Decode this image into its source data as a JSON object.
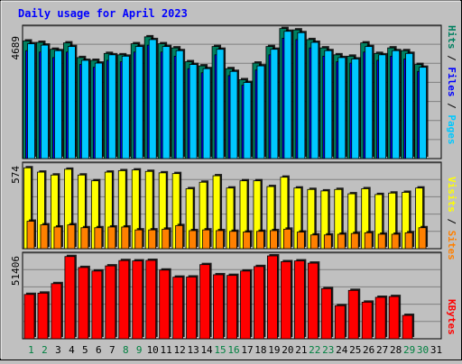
{
  "colors": {
    "background": "#c0c0c0",
    "panel": "#c0c0c0",
    "grid": "#808080",
    "title": "#0000ff",
    "pages": "#00c8ff",
    "files": "#0000ff",
    "hits": "#008060",
    "visits": "#ffff00",
    "sites": "#ff8000",
    "kbytes": "#ff0000",
    "weekend_day": "#008040",
    "weekday": "#000000"
  },
  "chart_data": [
    {
      "type": "bar",
      "title": "Daily usage for April 2023",
      "panel": "hits-files-pages",
      "categories": [
        "1",
        "2",
        "3",
        "4",
        "5",
        "6",
        "7",
        "8",
        "9",
        "10",
        "11",
        "12",
        "13",
        "14",
        "15",
        "16",
        "17",
        "18",
        "19",
        "20",
        "21",
        "22",
        "23",
        "24",
        "25",
        "26",
        "27",
        "28",
        "29",
        "30",
        "31"
      ],
      "weekend_days": [
        "1",
        "2",
        "8",
        "9",
        "15",
        "16",
        "22",
        "23",
        "29",
        "30"
      ],
      "ymax_label": "4689",
      "ylim": [
        0,
        4689
      ],
      "legend": [
        "Pages",
        "Files",
        "Hits"
      ],
      "series": [
        {
          "name": "Hits",
          "values": [
            4250,
            4200,
            3950,
            4180,
            3650,
            3550,
            3800,
            3750,
            4150,
            4400,
            4150,
            4000,
            3500,
            3350,
            4050,
            3250,
            2850,
            3450,
            4050,
            4700,
            4650,
            4300,
            4000,
            3750,
            3700,
            4180,
            3800,
            4000,
            3900,
            3400,
            null
          ]
        },
        {
          "name": "Files",
          "values": [
            3900,
            3850,
            3650,
            3850,
            3400,
            3300,
            3550,
            3500,
            3850,
            4100,
            3850,
            3700,
            3250,
            3100,
            3750,
            3000,
            2650,
            3200,
            3750,
            4350,
            4300,
            4000,
            3700,
            3500,
            3450,
            3850,
            3550,
            3700,
            3600,
            3150,
            null
          ]
        },
        {
          "name": "Pages",
          "values": [
            4150,
            4100,
            3900,
            4050,
            3550,
            3450,
            3750,
            3700,
            4050,
            4300,
            4050,
            3900,
            3400,
            3250,
            3950,
            3150,
            2750,
            3350,
            3950,
            4600,
            4550,
            4200,
            3900,
            3650,
            3600,
            4050,
            3750,
            3900,
            3800,
            3300,
            null
          ]
        }
      ]
    },
    {
      "type": "bar",
      "panel": "sites-visits",
      "categories": [
        "1",
        "2",
        "3",
        "4",
        "5",
        "6",
        "7",
        "8",
        "9",
        "10",
        "11",
        "12",
        "13",
        "14",
        "15",
        "16",
        "17",
        "18",
        "19",
        "20",
        "21",
        "22",
        "23",
        "24",
        "25",
        "26",
        "27",
        "28",
        "29",
        "30",
        "31"
      ],
      "ymax_label": "574",
      "ylim": [
        0,
        574
      ],
      "legend": [
        "Sites",
        "Visits"
      ],
      "series": [
        {
          "name": "Visits",
          "values": [
            560,
            530,
            510,
            550,
            510,
            470,
            530,
            540,
            545,
            535,
            525,
            520,
            415,
            460,
            505,
            420,
            470,
            470,
            430,
            495,
            420,
            410,
            400,
            410,
            380,
            415,
            375,
            385,
            390,
            420,
            null
          ]
        },
        {
          "name": "Sites",
          "values": [
            190,
            165,
            150,
            165,
            145,
            145,
            150,
            150,
            130,
            130,
            135,
            160,
            125,
            130,
            125,
            120,
            115,
            120,
            125,
            135,
            115,
            95,
            95,
            100,
            105,
            110,
            100,
            100,
            110,
            145,
            null
          ]
        }
      ]
    },
    {
      "type": "bar",
      "panel": "kbytes",
      "categories": [
        "1",
        "2",
        "3",
        "4",
        "5",
        "6",
        "7",
        "8",
        "9",
        "10",
        "11",
        "12",
        "13",
        "14",
        "15",
        "16",
        "17",
        "18",
        "19",
        "20",
        "21",
        "22",
        "23",
        "24",
        "25",
        "26",
        "27",
        "28",
        "29",
        "30",
        "31"
      ],
      "ymax_label": "51406",
      "ylim": [
        0,
        51406
      ],
      "legend": [
        "KBytes"
      ],
      "series": [
        {
          "name": "KBytes",
          "values": [
            27500,
            28300,
            34200,
            51000,
            44200,
            42000,
            45200,
            48500,
            48300,
            48600,
            42600,
            38200,
            38300,
            46000,
            39700,
            39300,
            42000,
            44800,
            51400,
            47800,
            48300,
            46900,
            31100,
            20500,
            30000,
            22700,
            25700,
            26200,
            14500,
            null,
            null
          ]
        }
      ]
    }
  ]
}
